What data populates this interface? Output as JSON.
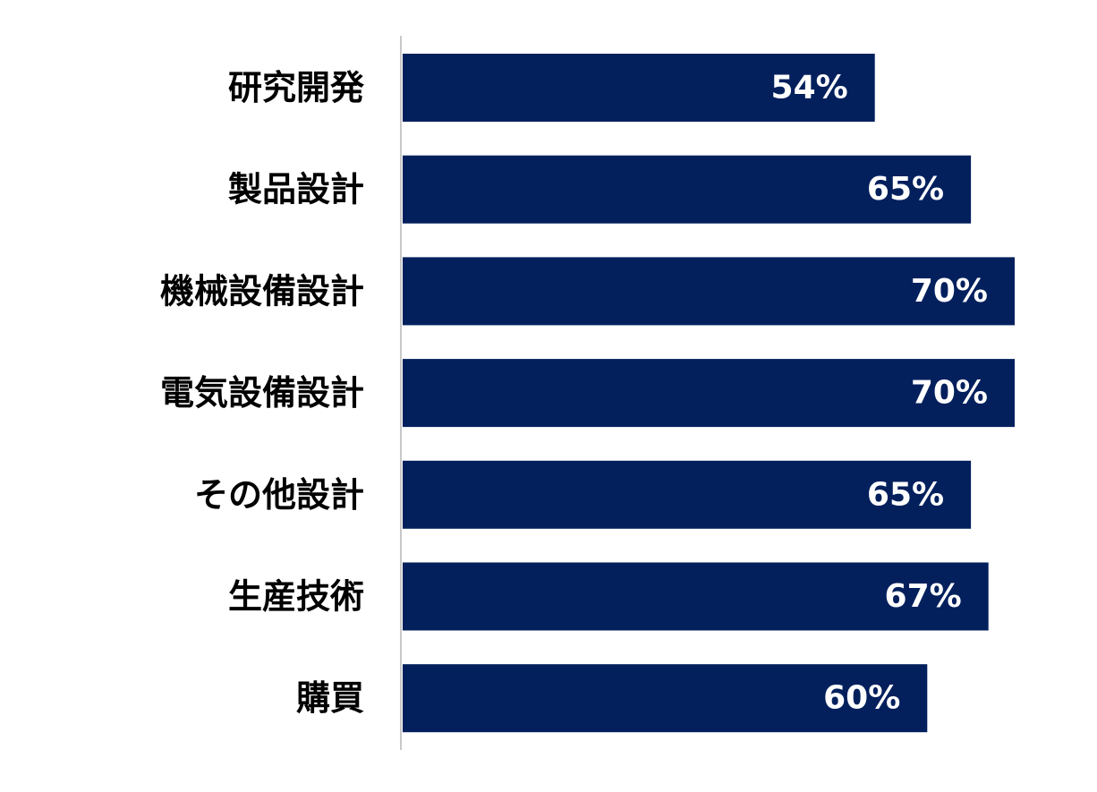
{
  "chart_data": {
    "type": "bar",
    "orientation": "horizontal",
    "categories": [
      "研究開発",
      "製品設計",
      "機械設備設計",
      "電気設備設計",
      "その他設計",
      "生産技術",
      "購買"
    ],
    "values": [
      54,
      65,
      70,
      70,
      65,
      67,
      60
    ],
    "value_labels": [
      "54%",
      "65%",
      "70%",
      "70%",
      "65%",
      "67%",
      "60%"
    ],
    "unit": "%",
    "xlim": [
      0,
      70
    ],
    "title": "",
    "xlabel": "",
    "ylabel": "",
    "grid": false,
    "legend": "none",
    "colors": {
      "bar": "#03205d",
      "axis": "#c8c8c8",
      "category_text": "#000000",
      "value_text": "#ffffff"
    }
  }
}
